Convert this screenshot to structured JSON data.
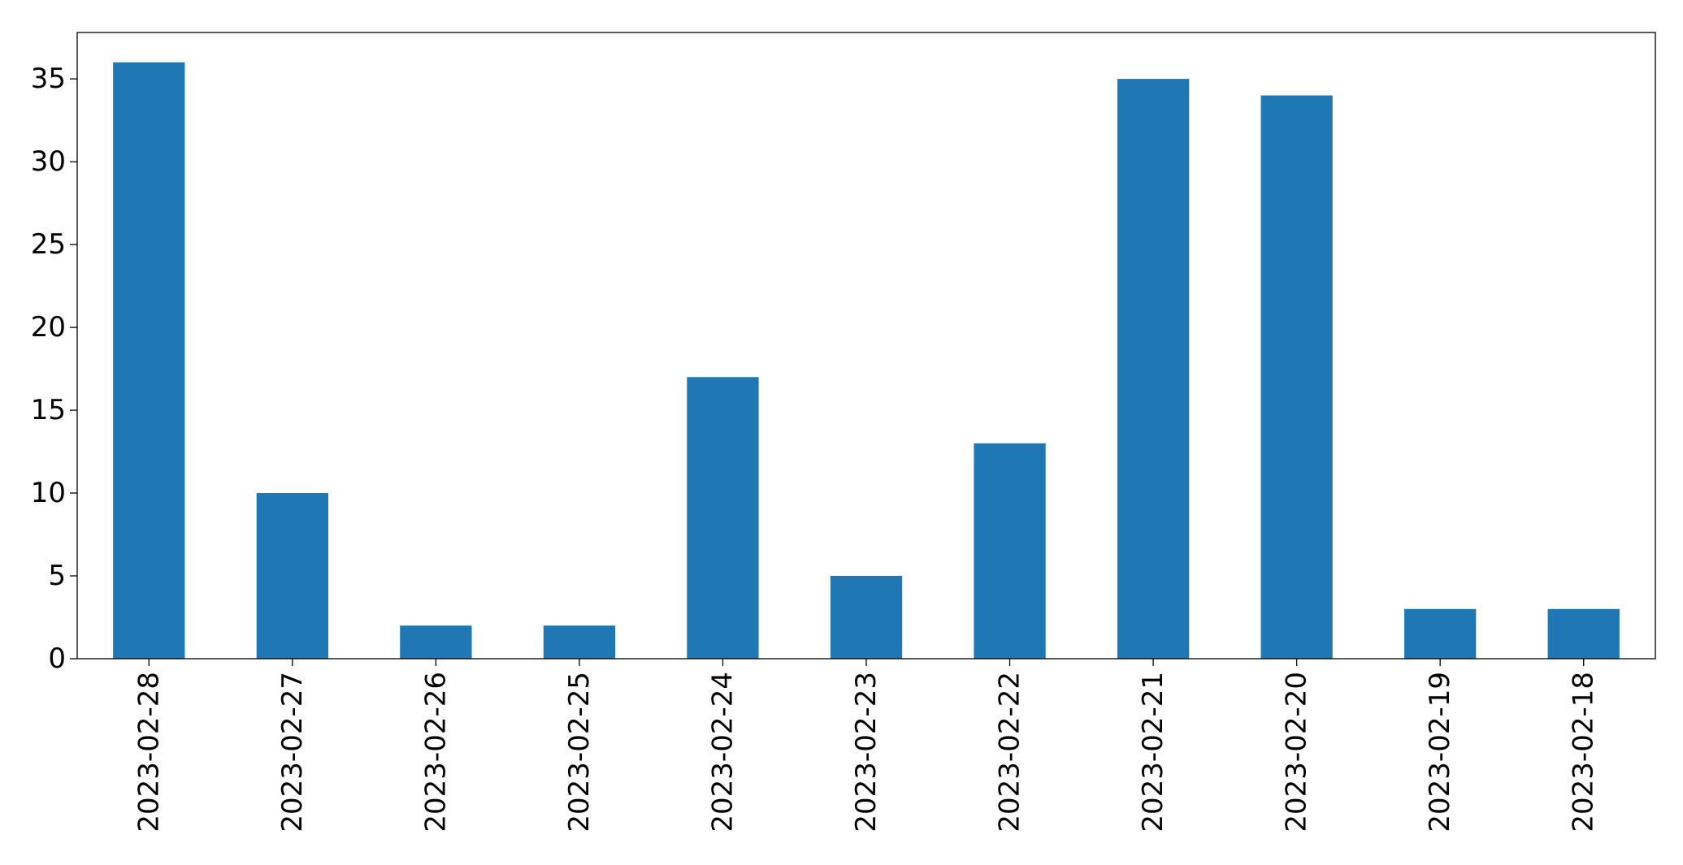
{
  "chart_data": {
    "type": "bar",
    "title": "",
    "xlabel": "",
    "ylabel": "",
    "categories": [
      "2023-02-28",
      "2023-02-27",
      "2023-02-26",
      "2023-02-25",
      "2023-02-24",
      "2023-02-23",
      "2023-02-22",
      "2023-02-21",
      "2023-02-20",
      "2023-02-19",
      "2023-02-18"
    ],
    "values": [
      36,
      10,
      2,
      2,
      17,
      5,
      13,
      35,
      34,
      3,
      3
    ],
    "ylim": [
      0,
      37.8
    ],
    "yticks": [
      0,
      5,
      10,
      15,
      20,
      25,
      30,
      35
    ],
    "grid": false,
    "legend": "none",
    "bar_color": "#1f77b4"
  }
}
